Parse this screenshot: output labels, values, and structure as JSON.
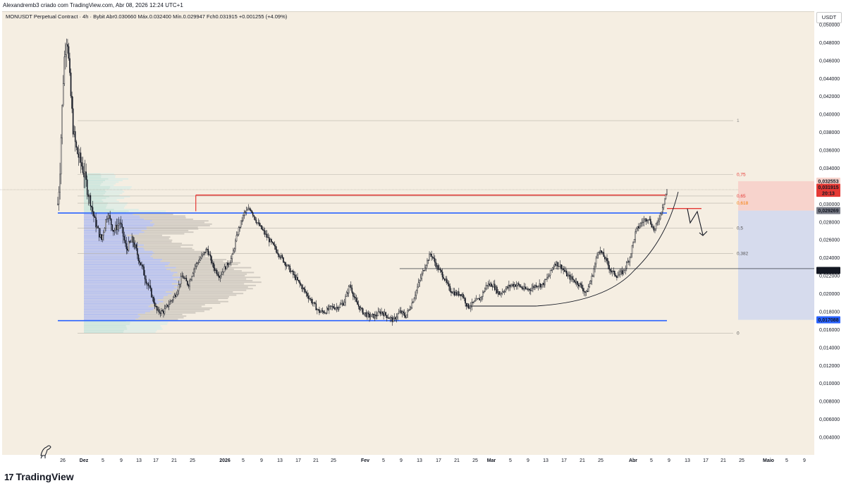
{
  "caption": "Alexandremb3 criado com TradingView.com, Abr 08, 2026 12:24 UTC+1",
  "symbol_line": "MONUSDT Perpetual Contract · 4h · Bybit  Abr0.030660  Máx.0.032400  Mín.0.029947  Fch0.031915  +0.001255 (+4.09%)",
  "currency": "USDT",
  "brand": "TradingView",
  "brand_logo": "17",
  "colors": {
    "background": "#f5eee2",
    "candle": "#131722",
    "resistance": "#e53935",
    "support": "#2962ff",
    "stop_zone": "#f7d3cc",
    "target_zone": "#d6dbed",
    "profile_blue": "#a9b6f0",
    "profile_grey": "#c9c3bb",
    "profile_teal": "#c3e4dc"
  },
  "chart_data": {
    "type": "candlestick",
    "timeframe": "4h",
    "y_axis": {
      "min": 0.0,
      "max": 0.0504,
      "tick_labels": [
        "0,050000",
        "0,048000",
        "0,046000",
        "0,044000",
        "0,042000",
        "0,040000",
        "0,038000",
        "0,036000",
        "0,034000",
        "0,032000",
        "0,030000",
        "0,028000",
        "0,026000",
        "0,024000",
        "0,022000",
        "0,020000",
        "0,018000",
        "0,016000",
        "0,014000",
        "0,012000",
        "0,010000",
        "0,008000",
        "0,006000",
        "0,004000"
      ],
      "tick_values": [
        0.05,
        0.048,
        0.046,
        0.044,
        0.042,
        0.04,
        0.038,
        0.036,
        0.034,
        0.032,
        0.03,
        0.028,
        0.026,
        0.024,
        0.022,
        0.02,
        0.018,
        0.016,
        0.014,
        0.012,
        0.01,
        0.008,
        0.006,
        0.004
      ]
    },
    "x_axis": {
      "labels": [
        "26",
        "Dez",
        "5",
        "9",
        "13",
        "17",
        "21",
        "25",
        "2026",
        "5",
        "9",
        "13",
        "17",
        "21",
        "25",
        "Fev",
        "5",
        "9",
        "13",
        "17",
        "21",
        "25",
        "Mar",
        "5",
        "9",
        "13",
        "17",
        "21",
        "25",
        "Abr",
        "5",
        "9",
        "13",
        "17",
        "21",
        "25",
        "Maio",
        "5",
        "9"
      ],
      "bold": [
        "Dez",
        "2026",
        "Fev",
        "Mar",
        "Abr",
        "Maio"
      ]
    },
    "price_path": [
      [
        0.0,
        0.03
      ],
      [
        0.3,
        0.033
      ],
      [
        0.6,
        0.039
      ],
      [
        1.0,
        0.046
      ],
      [
        1.5,
        0.049
      ],
      [
        2.0,
        0.043
      ],
      [
        2.5,
        0.038
      ],
      [
        3.0,
        0.036
      ],
      [
        4.0,
        0.034
      ],
      [
        5.0,
        0.031
      ],
      [
        6.0,
        0.028
      ],
      [
        7.0,
        0.026
      ],
      [
        8.0,
        0.029
      ],
      [
        9.0,
        0.027
      ],
      [
        10.0,
        0.028
      ],
      [
        11.0,
        0.025
      ],
      [
        12.0,
        0.026
      ],
      [
        13.0,
        0.024
      ],
      [
        14.0,
        0.022
      ],
      [
        15.0,
        0.02
      ],
      [
        16.0,
        0.018
      ],
      [
        17.0,
        0.018
      ],
      [
        18.0,
        0.019
      ],
      [
        19.0,
        0.02
      ],
      [
        20.0,
        0.022
      ],
      [
        21.0,
        0.021
      ],
      [
        22.0,
        0.023
      ],
      [
        23.0,
        0.024
      ],
      [
        24.0,
        0.025
      ],
      [
        25.0,
        0.023
      ],
      [
        26.0,
        0.022
      ],
      [
        27.0,
        0.023
      ],
      [
        28.0,
        0.024
      ],
      [
        29.0,
        0.027
      ],
      [
        30.0,
        0.029
      ],
      [
        31.0,
        0.0295
      ],
      [
        32.0,
        0.028
      ],
      [
        33.0,
        0.027
      ],
      [
        34.0,
        0.026
      ],
      [
        35.0,
        0.025
      ],
      [
        36.0,
        0.024
      ],
      [
        37.0,
        0.023
      ],
      [
        38.0,
        0.022
      ],
      [
        39.0,
        0.021
      ],
      [
        40.0,
        0.02
      ],
      [
        41.0,
        0.019
      ],
      [
        42.0,
        0.018
      ],
      [
        43.0,
        0.018
      ],
      [
        44.0,
        0.0185
      ],
      [
        45.0,
        0.0185
      ],
      [
        46.0,
        0.019
      ],
      [
        47.0,
        0.021
      ],
      [
        48.0,
        0.019
      ],
      [
        49.0,
        0.018
      ],
      [
        50.0,
        0.0175
      ],
      [
        51.0,
        0.0175
      ],
      [
        52.0,
        0.018
      ],
      [
        53.0,
        0.0175
      ],
      [
        54.0,
        0.017
      ],
      [
        55.0,
        0.018
      ],
      [
        56.0,
        0.0175
      ],
      [
        57.0,
        0.019
      ],
      [
        58.0,
        0.021
      ],
      [
        59.0,
        0.023
      ],
      [
        60.0,
        0.0245
      ],
      [
        61.0,
        0.023
      ],
      [
        62.0,
        0.022
      ],
      [
        63.0,
        0.0205
      ],
      [
        64.0,
        0.02
      ],
      [
        65.0,
        0.02
      ],
      [
        66.0,
        0.0185
      ],
      [
        67.0,
        0.019
      ],
      [
        68.0,
        0.0195
      ],
      [
        69.0,
        0.021
      ],
      [
        70.0,
        0.021
      ],
      [
        71.0,
        0.02
      ],
      [
        72.0,
        0.0205
      ],
      [
        73.0,
        0.021
      ],
      [
        74.0,
        0.021
      ],
      [
        75.0,
        0.0205
      ],
      [
        76.0,
        0.0205
      ],
      [
        77.0,
        0.021
      ],
      [
        78.0,
        0.021
      ],
      [
        79.0,
        0.022
      ],
      [
        80.0,
        0.0235
      ],
      [
        81.0,
        0.023
      ],
      [
        82.0,
        0.022
      ],
      [
        83.0,
        0.0215
      ],
      [
        84.0,
        0.021
      ],
      [
        85.0,
        0.02
      ],
      [
        86.0,
        0.022
      ],
      [
        87.0,
        0.025
      ],
      [
        88.0,
        0.024
      ],
      [
        89.0,
        0.0225
      ],
      [
        90.0,
        0.022
      ],
      [
        91.0,
        0.0225
      ],
      [
        92.0,
        0.024
      ],
      [
        93.0,
        0.027
      ],
      [
        94.0,
        0.028
      ],
      [
        95.0,
        0.0285
      ],
      [
        96.0,
        0.027
      ],
      [
        97.0,
        0.029
      ],
      [
        98.0,
        0.0315
      ]
    ],
    "levels": [
      {
        "name": "resistance",
        "price": 0.031,
        "from": 22.2,
        "to": 98.0,
        "color": "#e53935"
      },
      {
        "name": "support_upper",
        "price": 0.029,
        "from": 0.0,
        "to": 98.0,
        "color": "#2962ff"
      },
      {
        "name": "support_lower",
        "price": 0.017,
        "from": 0.0,
        "to": 98.0,
        "color": "#2962ff"
      },
      {
        "name": "range_line",
        "price": 0.0228,
        "from": 55.0,
        "to": 120.0,
        "color": "#131722"
      }
    ],
    "fibonacci": {
      "levels": [
        {
          "label": "1",
          "price": 0.0393,
          "color": "#8a8a8a"
        },
        {
          "label": "0,75",
          "price": 0.0333,
          "color": "#e53935"
        },
        {
          "label": "0,65",
          "price": 0.0309,
          "color": "#e53935"
        },
        {
          "label": "0,618",
          "price": 0.0301,
          "color": "#f57c00"
        },
        {
          "label": "0,5",
          "price": 0.0273,
          "color": "#555555"
        },
        {
          "label": "0,382",
          "price": 0.0245,
          "color": "#555555"
        },
        {
          "label": "0",
          "price": 0.0156,
          "color": "#555555"
        }
      ]
    },
    "position": {
      "stop_top": 0.03255,
      "entry": 0.02927,
      "target": 0.01709
    },
    "price_labels": [
      {
        "text": "0,032553",
        "price": 0.03255,
        "bg": "#f7d3cc",
        "fg": "#131722"
      },
      {
        "text": "0,031915",
        "price": 0.03187,
        "bg": "#e53935",
        "fg": "#ffffff"
      },
      {
        "text": "20:13",
        "price": 0.0312,
        "bg": "#e53935",
        "fg": "#ffffff"
      },
      {
        "text": "0,029269",
        "price": 0.02927,
        "bg": "#787b86",
        "fg": "#ffffff"
      },
      {
        "text": "0,022595",
        "price": 0.0226,
        "bg": "#131722",
        "fg": "#ffffff"
      },
      {
        "text": "0,017088",
        "price": 0.01709,
        "bg": "#2962ff",
        "fg": "#ffffff"
      }
    ]
  }
}
